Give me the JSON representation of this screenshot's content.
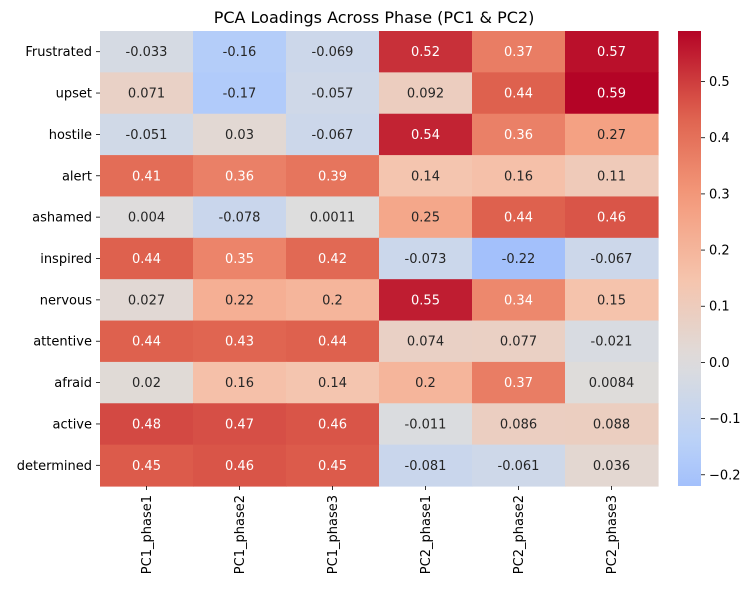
{
  "chart_data": {
    "type": "heatmap",
    "title": "PCA Loadings Across Phase (PC1 & PC2)",
    "xlabel": "",
    "ylabel": "",
    "columns": [
      "PC1_phase1",
      "PC1_phase2",
      "PC1_phase3",
      "PC2_phase1",
      "PC2_phase2",
      "PC2_phase3"
    ],
    "rows": [
      "Frustrated",
      "upset",
      "hostile",
      "alert",
      "ashamed",
      "inspired",
      "nervous",
      "attentive",
      "afraid",
      "active",
      "determined"
    ],
    "values": [
      [
        -0.033,
        -0.16,
        -0.069,
        0.52,
        0.37,
        0.57
      ],
      [
        0.071,
        -0.17,
        -0.057,
        0.092,
        0.44,
        0.59
      ],
      [
        -0.051,
        0.03,
        -0.067,
        0.54,
        0.36,
        0.27
      ],
      [
        0.41,
        0.36,
        0.39,
        0.14,
        0.16,
        0.11
      ],
      [
        0.004,
        -0.078,
        0.0011,
        0.25,
        0.44,
        0.46
      ],
      [
        0.44,
        0.35,
        0.42,
        -0.073,
        -0.22,
        -0.067
      ],
      [
        0.027,
        0.22,
        0.2,
        0.55,
        0.34,
        0.15
      ],
      [
        0.44,
        0.43,
        0.44,
        0.074,
        0.077,
        -0.021
      ],
      [
        0.02,
        0.16,
        0.14,
        0.2,
        0.37,
        0.0084
      ],
      [
        0.48,
        0.47,
        0.46,
        -0.011,
        0.086,
        0.088
      ],
      [
        0.45,
        0.46,
        0.45,
        -0.081,
        -0.061,
        0.036
      ]
    ],
    "colormap": "coolwarm",
    "center": 0,
    "vmin": -0.22,
    "vmax": 0.59,
    "colorbar_ticks": [
      -0.2,
      -0.1,
      0.0,
      0.1,
      0.2,
      0.3,
      0.4,
      0.5
    ],
    "colorbar_tick_labels": [
      "−0.2",
      "−0.1",
      "0.0",
      "0.1",
      "0.2",
      "0.3",
      "0.4",
      "0.5"
    ],
    "colorbar_placement": "right",
    "grid": false
  }
}
